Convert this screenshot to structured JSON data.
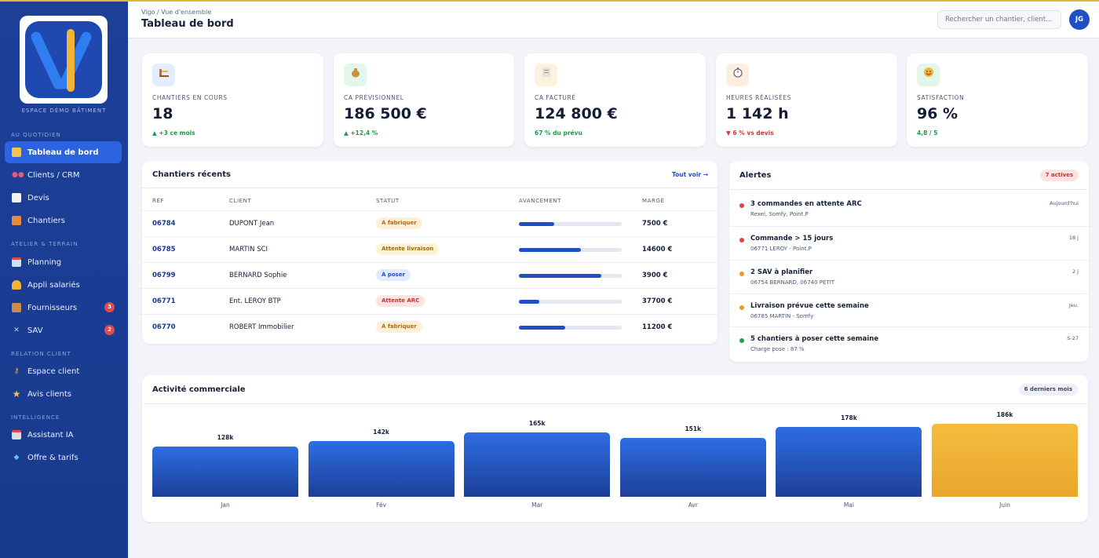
{
  "sidebar": {
    "logo_caption": "ESPACE DÉMO BÂTIMENT",
    "sections": [
      "AU QUOTIDIEN",
      "ATELIER & TERRAIN",
      "RELATION CLIENT",
      "INTELLIGENCE"
    ],
    "items": [
      {
        "label": "Tableau de bord",
        "icon": "bar-chart-icon",
        "active": true
      },
      {
        "label": "Clients / CRM",
        "icon": "people-icon"
      },
      {
        "label": "Devis",
        "icon": "document-icon"
      },
      {
        "label": "Chantiers",
        "icon": "construction-icon"
      },
      {
        "label": "Planning",
        "icon": "calendar-icon"
      },
      {
        "label": "Appli salariés",
        "icon": "worker-icon"
      },
      {
        "label": "Fournisseurs",
        "icon": "box-icon",
        "badge": "3"
      },
      {
        "label": "SAV",
        "icon": "tools-icon",
        "badge": "2"
      },
      {
        "label": "Espace client",
        "icon": "key-icon"
      },
      {
        "label": "Avis clients",
        "icon": "star-icon"
      },
      {
        "label": "Assistant IA",
        "icon": "robot-icon"
      },
      {
        "label": "Offre & tarifs",
        "icon": "diamond-icon"
      }
    ]
  },
  "header": {
    "breadcrumb": "Vigo / Vue d'ensemble",
    "title": "Tableau de bord",
    "search_placeholder": "Rechercher un chantier, client...",
    "avatar_initials": "JG"
  },
  "kpis": [
    {
      "label": "CHANTIERS EN COURS",
      "value": "18",
      "delta": "▲ +3 ce mois",
      "trend": "up",
      "icon": "construction-icon"
    },
    {
      "label": "CA PRÉVISIONNEL",
      "value": "186 500 €",
      "delta": "▲ +12,4 %",
      "trend": "up",
      "icon": "money-bag-icon"
    },
    {
      "label": "CA FACTURÉ",
      "value": "124 800 €",
      "delta": "67 % du prévu",
      "trend": "up",
      "icon": "invoice-icon"
    },
    {
      "label": "HEURES RÉALISÉES",
      "value": "1 142 h",
      "delta": "▼ 6 % vs devis",
      "trend": "down",
      "icon": "stopwatch-icon"
    },
    {
      "label": "SATISFACTION",
      "value": "96 %",
      "delta": "4,8 / 5",
      "trend": "up",
      "icon": "smile-icon"
    }
  ],
  "recent": {
    "title": "Chantiers récents",
    "link": "Tout voir →",
    "columns": [
      "RÉF",
      "CLIENT",
      "STATUT",
      "AVANCEMENT",
      "MARGE"
    ],
    "rows": [
      {
        "ref": "06784",
        "client": "DUPONT Jean",
        "status": "À fabriquer",
        "status_kind": "amber",
        "progress": 0.34,
        "margin": "7500 €"
      },
      {
        "ref": "06785",
        "client": "MARTIN SCI",
        "status": "Attente livraison",
        "status_kind": "yellow",
        "progress": 0.6,
        "margin": "14600 €"
      },
      {
        "ref": "06799",
        "client": "BERNARD Sophie",
        "status": "À poser",
        "status_kind": "blue",
        "progress": 0.8,
        "margin": "3900 €"
      },
      {
        "ref": "06771",
        "client": "Ent. LEROY BTP",
        "status": "Attente ARC",
        "status_kind": "red",
        "progress": 0.2,
        "margin": "37700 €"
      },
      {
        "ref": "06770",
        "client": "ROBERT Immobilier",
        "status": "À fabriquer",
        "status_kind": "amber",
        "progress": 0.45,
        "margin": "11200 €"
      }
    ]
  },
  "alerts": {
    "title": "Alertes",
    "badge": "7 actives",
    "items": [
      {
        "title": "3 commandes en attente ARC",
        "sub": "Rexel, Somfy, Point.P",
        "time": "Aujourd'hui",
        "color": "#e04444"
      },
      {
        "title": "Commande > 15 jours",
        "sub": "06771 LEROY - Point.P",
        "time": "18 j",
        "color": "#e04444"
      },
      {
        "title": "2 SAV à planifier",
        "sub": "06754 BERNARD, 06740 PETIT",
        "time": "2 j",
        "color": "#ee9a23"
      },
      {
        "title": "Livraison prévue cette semaine",
        "sub": "06785 MARTIN - Somfy",
        "time": "Jeu.",
        "color": "#ee9a23"
      },
      {
        "title": "5 chantiers à poser cette semaine",
        "sub": "Charge pose : 87 %",
        "time": "S-27",
        "color": "#22a052"
      }
    ]
  },
  "activity": {
    "title": "Activité commerciale",
    "badge": "6 derniers mois"
  },
  "chart_data": {
    "type": "bar",
    "categories": [
      "Jan",
      "Fév",
      "Mar",
      "Avr",
      "Mai",
      "Juin"
    ],
    "values": [
      128,
      142,
      165,
      151,
      178,
      186
    ],
    "value_labels": [
      "128k",
      "142k",
      "165k",
      "151k",
      "178k",
      "186k"
    ],
    "highlight_index": 5,
    "colors": {
      "bar": "#2456c8",
      "highlight": "#f0b132"
    }
  }
}
